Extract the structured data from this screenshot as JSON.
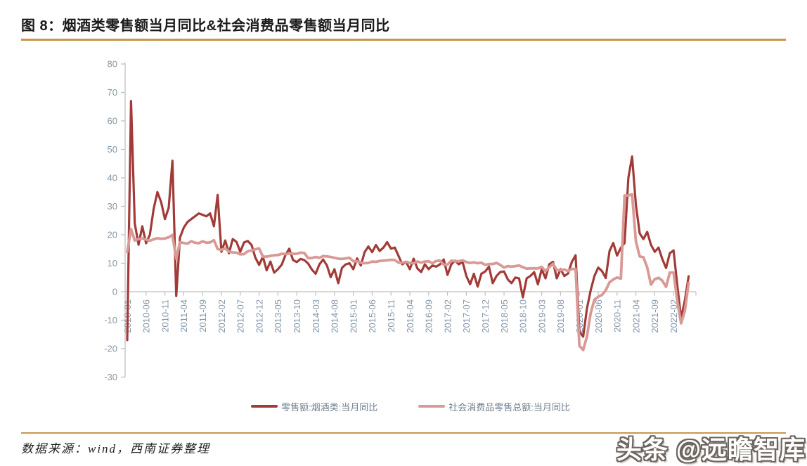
{
  "title": "图 8：烟酒类零售额当月同比&社会消费品零售额当月同比",
  "footer": {
    "source_text": "数据来源：wind，西南证券整理",
    "watermark": "头条 @远瞻智库"
  },
  "colors": {
    "accent_rule": "#C8964F",
    "axis": "#BFBFBF",
    "tick_label": "#8497AB",
    "legend_text": "#6F7F8F",
    "title_text": "#1A1A1A",
    "source_color": "#222222",
    "watermark_fill": "#FFFFFF",
    "watermark_outline": "#6E665F"
  },
  "chart_data": {
    "type": "line",
    "title": "烟酒类零售额当月同比&社会消费品零售额当月同比",
    "x_start": "2010-01",
    "x_end": "2022-06",
    "x_unit": "month",
    "ylim": [
      -30,
      80
    ],
    "grid": false,
    "legend_position": "bottom",
    "y_ticks": [
      80,
      70,
      60,
      50,
      40,
      30,
      20,
      10,
      0,
      -10,
      -20,
      -30
    ],
    "x_tick_labels": [
      "2010-01",
      "2010-06",
      "2010-11",
      "2011-04",
      "2011-09",
      "2012-02",
      "2012-07",
      "2012-12",
      "2013-05",
      "2013-10",
      "2014-03",
      "2014-08",
      "2015-01",
      "2015-06",
      "2015-11",
      "2016-04",
      "2016-09",
      "2017-02",
      "2017-07",
      "2017-12",
      "2018-05",
      "2018-10",
      "2019-03",
      "2019-08",
      "2020-01",
      "2020-06",
      "2020-11",
      "2021-04",
      "2021-09",
      "2022-02"
    ],
    "series": [
      {
        "name": "零售额:烟酒类:当月同比",
        "color": "#A23B38",
        "values": [
          -17,
          67,
          24,
          16.5,
          23,
          17,
          20,
          29,
          35,
          31.5,
          25.5,
          29.5,
          46,
          -1.5,
          19,
          22.5,
          24.5,
          25.5,
          26.5,
          27.5,
          27,
          26.5,
          27.5,
          23,
          34,
          14,
          18,
          13.5,
          18.5,
          17.5,
          14,
          17.3,
          17.8,
          16.4,
          12,
          9.4,
          12.3,
          7.5,
          10.6,
          6.7,
          7.9,
          9.5,
          12.9,
          15.1,
          11.1,
          10.4,
          11.5,
          11.1,
          9.9,
          7.8,
          6.3,
          9.6,
          11.3,
          9.2,
          5.1,
          7.9,
          3,
          8.4,
          9.6,
          10,
          7.9,
          11.7,
          9.2,
          13.9,
          15.9,
          13.9,
          16.4,
          14.3,
          15.5,
          17.4,
          15.1,
          15.5,
          12.6,
          9.6,
          10.5,
          7.9,
          11.6,
          8.2,
          6.9,
          9.6,
          7.9,
          9.2,
          8.8,
          9.6,
          11.3,
          5.9,
          9.6,
          10.9,
          9.6,
          10.5,
          5.5,
          2.6,
          6.3,
          1.8,
          6.3,
          7.1,
          8.8,
          3,
          5.5,
          6.9,
          7.1,
          4.3,
          3,
          5,
          4.7,
          -2,
          4.7,
          5.5,
          6.9,
          2.6,
          7.9,
          4.7,
          9.6,
          10.5,
          4.7,
          7.9,
          5.5,
          6.4,
          10.5,
          12.8,
          -14,
          -15.8,
          -6,
          0.5,
          5.5,
          8.5,
          7.2,
          4.8,
          14.3,
          17.1,
          12.7,
          15.4,
          17.1,
          40,
          47.5,
          30.5,
          20.5,
          18.5,
          21,
          16.5,
          14,
          15.5,
          11.5,
          8.3,
          13.5,
          14.5,
          2,
          -9.3,
          -3,
          5.4
        ]
      },
      {
        "name": "社会消费品零售总额:当月同比",
        "color": "#D99A96",
        "values": [
          14,
          22,
          18,
          18.5,
          18.7,
          18.3,
          17.9,
          18.4,
          18.8,
          18.6,
          18.7,
          19.1,
          19.9,
          11.6,
          17.4,
          17.1,
          16.9,
          17.7,
          17.2,
          17,
          17.7,
          17.2,
          17.3,
          18.1,
          15,
          14.7,
          15.2,
          14.1,
          13.8,
          13.7,
          13.1,
          13.2,
          14.2,
          14.5,
          14.9,
          15.2,
          12.3,
          12.3,
          12.6,
          12.8,
          12.9,
          13.3,
          13.2,
          13.4,
          13.3,
          13.3,
          13.7,
          13.6,
          11.8,
          11.8,
          12.2,
          11.9,
          12.5,
          12.4,
          12.2,
          11.9,
          11.6,
          11.5,
          11.7,
          11.9,
          10.7,
          10.7,
          10.2,
          10,
          10.1,
          10.6,
          10.5,
          10.8,
          10.9,
          11,
          11.2,
          11.1,
          10.2,
          10.2,
          10.5,
          10.1,
          10,
          10.6,
          10.2,
          10.6,
          10.7,
          10,
          10.8,
          10.9,
          9.5,
          9.5,
          10.9,
          10.7,
          10.7,
          11,
          10.4,
          10.1,
          10.3,
          10,
          10.2,
          9.4,
          9.7,
          9.7,
          10.1,
          9.4,
          8.5,
          9,
          8.8,
          9,
          9.2,
          8.6,
          8.1,
          8.2,
          8.2,
          8.2,
          8.7,
          7.2,
          8.6,
          9.8,
          7.6,
          7.5,
          7.8,
          7.2,
          8,
          8,
          -19,
          -20.5,
          -15.8,
          -7.5,
          -2.8,
          -1.8,
          -1.1,
          0.5,
          3.3,
          4.3,
          5,
          4.6,
          33.8,
          33.8,
          34.2,
          17.7,
          12.4,
          12.1,
          8.5,
          2.5,
          4.4,
          4.9,
          3.9,
          1.7,
          6.7,
          6.7,
          -3.5,
          -11.1,
          -6.7,
          3.1
        ]
      }
    ]
  }
}
